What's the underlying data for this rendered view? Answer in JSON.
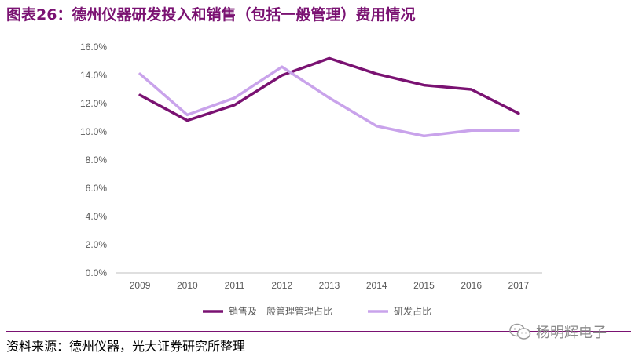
{
  "header": {
    "title": "图表26：德州仪器研发投入和销售（包括一般管理）费用情况"
  },
  "footer": {
    "source": "资料来源：德州仪器，光大证券研究所整理"
  },
  "watermark": {
    "text": "杨明辉电子",
    "icon": "wechat-icon"
  },
  "chart_data": {
    "type": "line",
    "title": "",
    "xlabel": "",
    "ylabel": "",
    "x": [
      "2009",
      "2010",
      "2011",
      "2012",
      "2013",
      "2014",
      "2015",
      "2016",
      "2017"
    ],
    "y_ticks": [
      "0.0%",
      "2.0%",
      "4.0%",
      "6.0%",
      "8.0%",
      "10.0%",
      "12.0%",
      "14.0%",
      "16.0%"
    ],
    "ylim": [
      0,
      16
    ],
    "grid": false,
    "legend_position": "bottom",
    "series": [
      {
        "name": "销售及一般管理管理占比",
        "color": "#7a1272",
        "values": [
          12.6,
          10.8,
          11.9,
          14.0,
          15.2,
          14.1,
          13.3,
          13.0,
          11.3
        ]
      },
      {
        "name": "研发占比",
        "color": "#c9a3eb",
        "values": [
          14.1,
          11.2,
          12.4,
          14.6,
          12.4,
          10.4,
          9.7,
          10.1,
          10.1
        ]
      }
    ]
  }
}
